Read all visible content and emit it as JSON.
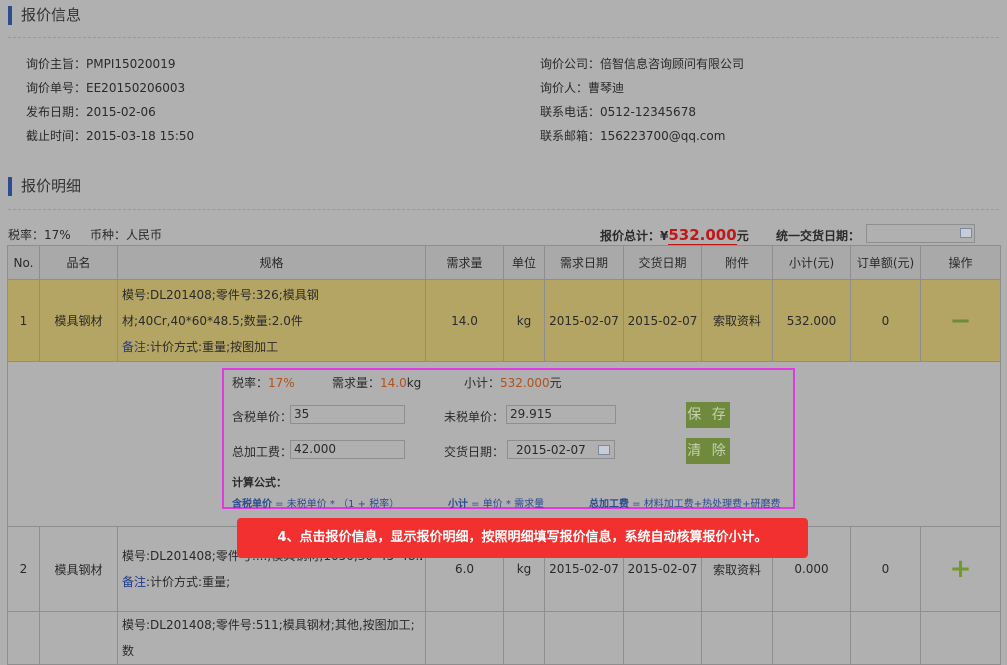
{
  "info_section": {
    "title": "报价信息",
    "left": [
      {
        "label": "询价主旨：",
        "value": "PMPI15020019"
      },
      {
        "label": "询价单号：",
        "value": "EE20150206003"
      },
      {
        "label": "发布日期：",
        "value": "2015-02-06"
      },
      {
        "label": "截止时间：",
        "value": "2015-03-18 15:50"
      }
    ],
    "right": [
      {
        "label": "询价公司：",
        "value": "倍智信息咨询顾问有限公司"
      },
      {
        "label": "询价人：",
        "value": "曹琴迪"
      },
      {
        "label": "联系电话：",
        "value": "0512-12345678"
      },
      {
        "label": "联系邮箱：",
        "value": "156223700@qq.com"
      }
    ]
  },
  "detail_section": {
    "title": "报价明细",
    "tax_rate": "税率：17%",
    "currency": "币种：人民币",
    "total_label": "报价总计：¥",
    "total_value": "532.000",
    "total_unit": "元",
    "unified_date_label": "统一交货日期：",
    "unified_date_value": ""
  },
  "table": {
    "headers": [
      "No.",
      "品名",
      "规格",
      "需求量",
      "单位",
      "需求日期",
      "交货日期",
      "附件",
      "小计(元)",
      "订单额(元)",
      "操作"
    ],
    "rows": [
      {
        "no": "1",
        "name": "模具钢材",
        "spec": "模号:DL201408;零件号:326;模具钢材;40Cr,40*60*48.5;数量:2.0件",
        "note_label": "备注",
        "note": ":计价方式:重量;按图加工",
        "qty": "14.0",
        "unit": "kg",
        "req_date": "2015-02-07",
        "del_date": "2015-02-07",
        "attach": "索取资料",
        "subtotal": "532.000",
        "order": "0",
        "action": "−"
      },
      {
        "no": "2",
        "name": "模具钢材",
        "spec": "模号:DL201408;零件号:...;模具钢材;1050,30*45*48.2;数量:2.0件",
        "note_label": "备注",
        "note": ":计价方式:重量;",
        "qty": "6.0",
        "unit": "kg",
        "req_date": "2015-02-07",
        "del_date": "2015-02-07",
        "attach": "索取资料",
        "subtotal": "0.000",
        "order": "0",
        "action": "+"
      },
      {
        "spec": "模号:DL201408;零件号:511;模具钢材;其他,按图加工;数"
      }
    ]
  },
  "editor": {
    "tax_label": "税率：",
    "tax": "17%",
    "qty_label": "需求量：",
    "qty": "14.0",
    "qty_unit": "kg",
    "sub_label": "小计：",
    "sub": "532.000",
    "sub_unit": "元",
    "price_tax_label": "含税单价：",
    "price_tax": "35",
    "price_notax_label": "未税单价：",
    "price_notax": "29.915",
    "process_label": "总加工费：",
    "process": "42.000",
    "date_label": "交货日期：",
    "date": "2015-02-07",
    "save": "保 存",
    "clear": "清 除",
    "formula_title": "计算公式：",
    "f1_key": "含税单价",
    "f1": " = 未税单价 * （1 + 税率）",
    "f2_key": "小计",
    "f2": " = 单价 * 需求量",
    "f3_key": "总加工费",
    "f3": " = 材料加工费+热处理费+研磨费"
  },
  "callout": "4、点击报价信息，显示报价明细，按照明细填写报价信息，系统自动核算报价小计。",
  "colors": {
    "accent": "#2d4c8f",
    "highlight_row": "#b5a564",
    "callout": "#f23030",
    "frame": "#e13ae3",
    "button": "#6f8a3c"
  }
}
